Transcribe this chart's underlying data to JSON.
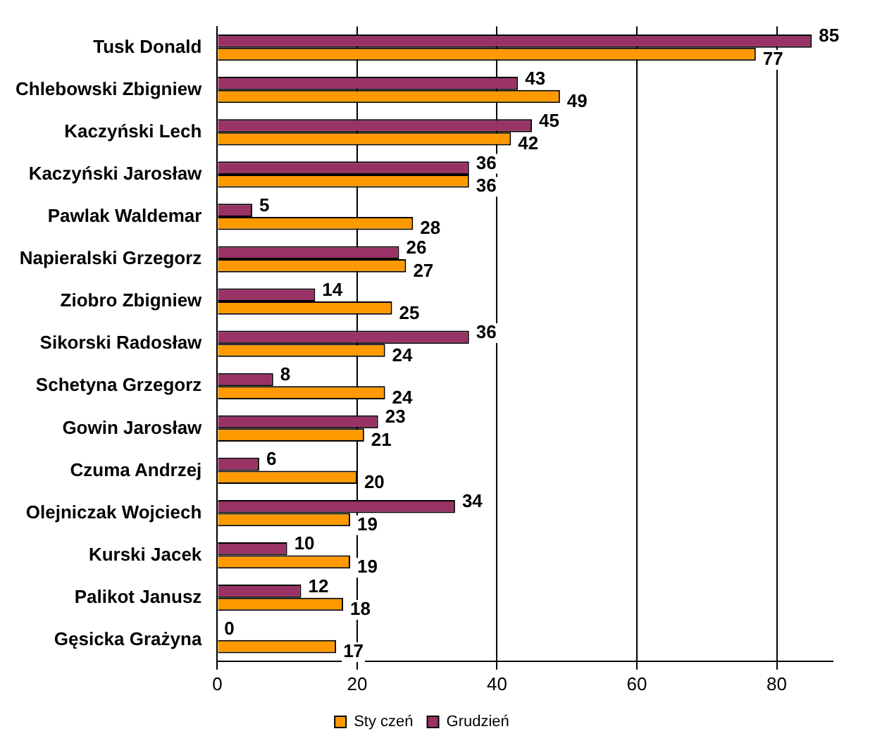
{
  "chart_data": {
    "type": "bar",
    "orientation": "horizontal",
    "categories": [
      "Tusk Donald",
      "Chlebowski Zbigniew",
      "Kaczyński Lech",
      "Kaczyński Jarosław",
      "Pawlak Waldemar",
      "Napieralski Grzegorz",
      "Ziobro Zbigniew",
      "Sikorski Radosław",
      "Schetyna Grzegorz",
      "Gowin Jarosław",
      "Czuma Andrzej",
      "Olejniczak Wojciech",
      "Kurski Jacek",
      "Palikot Janusz",
      "Gęsicka Grażyna"
    ],
    "series": [
      {
        "name": "Grudzień",
        "color": "#993366",
        "values": [
          85,
          43,
          45,
          36,
          5,
          26,
          14,
          36,
          8,
          23,
          6,
          34,
          10,
          12,
          0
        ]
      },
      {
        "name": "Sty czeń",
        "color": "#ff9900",
        "values": [
          77,
          49,
          42,
          36,
          28,
          27,
          25,
          24,
          24,
          21,
          20,
          19,
          19,
          18,
          17
        ]
      }
    ],
    "xlim": [
      0,
      88
    ],
    "xticks": [
      0,
      20,
      40,
      60,
      80
    ],
    "grid": "x",
    "legend": "bottom",
    "data_labels": true
  }
}
